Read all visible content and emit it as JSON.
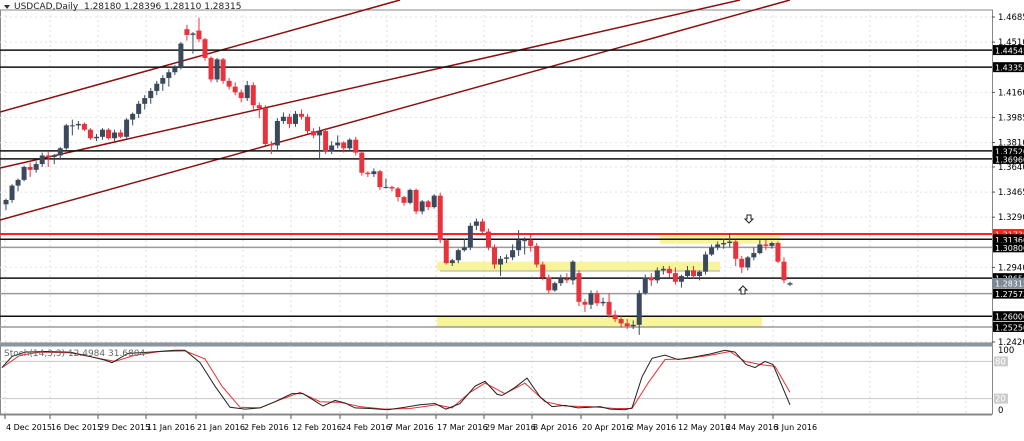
{
  "header": {
    "symbol": "USDCAD,Daily",
    "ohlc": "1.28180 1.28396 1.28110 1.28315"
  },
  "stoch": {
    "label": "Stoch(14,3,3) 12.4984 31.6804",
    "axis_labels": [
      "100",
      "80",
      "20",
      "0"
    ]
  },
  "colors": {
    "bull": "#3a4a5c",
    "bear": "#e8323c",
    "trendline": "#8b0f0f",
    "resistance": "#ff2020",
    "zone": "#f7f49a",
    "support": "#111111",
    "grey_level": "#9a9a9a"
  },
  "chart_data": {
    "type": "candlestick",
    "title": "USDCAD,Daily",
    "y_ticks": [
      "1.46850",
      "1.45100",
      "1.41600",
      "1.39850",
      "1.38100",
      "1.36400",
      "1.34650",
      "1.32900",
      "1.29400",
      "1.24200"
    ],
    "x_ticks": [
      "4 Dec 2015",
      "16 Dec 2015",
      "29 Dec 2015",
      "11 Jan 2016",
      "21 Jan 2016",
      "2 Feb 2016",
      "12 Feb 2016",
      "24 Feb 2016",
      "7 Mar 2016",
      "17 Mar 2016",
      "29 Mar 2016",
      "8 Apr 2016",
      "20 Apr 2016",
      "2 May 2016",
      "12 May 2016",
      "24 May 2016",
      "3 Jun 2016"
    ],
    "horizontal_levels": [
      {
        "value": "1.44545",
        "style": "black"
      },
      {
        "value": "1.43355",
        "style": "black"
      },
      {
        "value": "1.37520",
        "style": "black"
      },
      {
        "value": "1.36960",
        "style": "black"
      },
      {
        "value": "1.31730",
        "style": "red"
      },
      {
        "value": "1.31360",
        "style": "black"
      },
      {
        "value": "1.30800",
        "style": "grey"
      },
      {
        "value": "1.28650",
        "style": "black"
      },
      {
        "value": "1.28315",
        "style": "current"
      },
      {
        "value": "1.27573",
        "style": "grey"
      },
      {
        "value": "1.26000",
        "style": "black"
      },
      {
        "value": "1.25250",
        "style": "grey"
      }
    ],
    "ylim": [
      1.238,
      1.48
    ],
    "indicator": {
      "name": "Stoch(14,3,3)",
      "main": 12.4984,
      "signal": 31.6804,
      "levels": [
        80,
        20
      ]
    }
  }
}
